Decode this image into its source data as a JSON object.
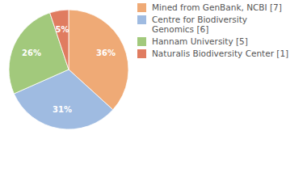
{
  "chart_data": {
    "type": "pie",
    "categories": [
      "Mined from GenBank, NCBI [7]",
      "Centre for Biodiversity Genomics [6]",
      "Hannam University [5]",
      "Naturalis Biodiversity Center [1]"
    ],
    "values": [
      36,
      31,
      26,
      5
    ],
    "value_labels": [
      "36%",
      "31%",
      "26%",
      "5%"
    ],
    "colors": [
      "#efaa76",
      "#9fbbe1",
      "#a2c97c",
      "#e07c60"
    ],
    "data_labels": true,
    "legend": "right"
  }
}
